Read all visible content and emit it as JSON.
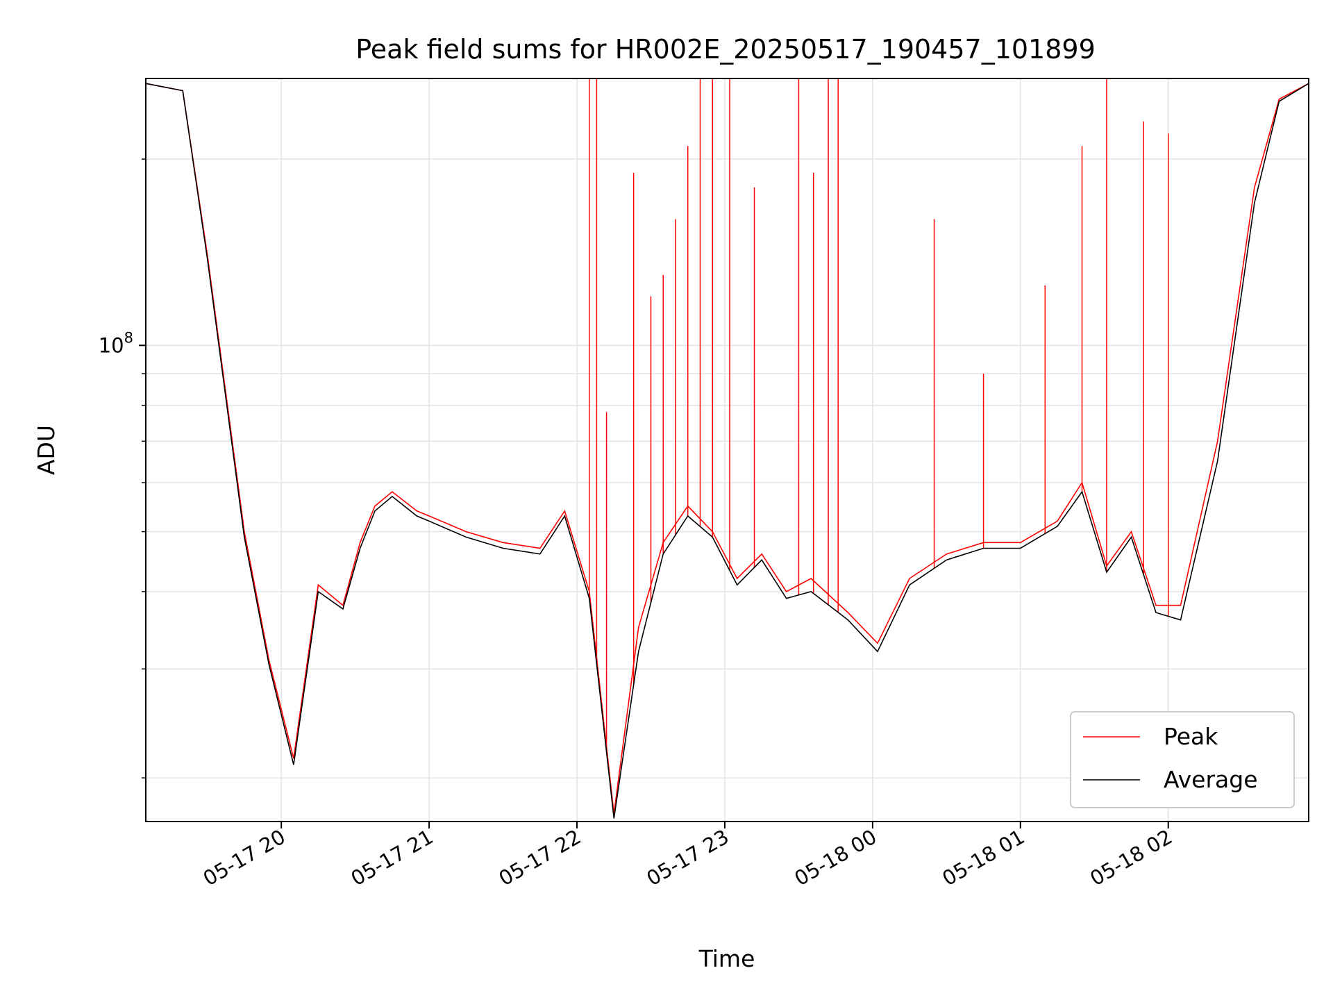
{
  "chart_data": {
    "type": "line",
    "title": "Peak field sums for HR002E_20250517_190457_101899",
    "xlabel": "Time",
    "ylabel": "ADU",
    "yscale": "log",
    "ylim": [
      17000000,
      270000000
    ],
    "xlim": [
      "05-17 19:05",
      "05-18 02:57"
    ],
    "x_ticks": [
      "05-17 20",
      "05-17 21",
      "05-17 22",
      "05-17 23",
      "05-18 00",
      "05-18 01",
      "05-18 02"
    ],
    "y_major_ticks": [
      {
        "value": 100000000,
        "label": "10^8"
      }
    ],
    "grid": true,
    "legend_position": "lower-right",
    "series": [
      {
        "name": "Peak",
        "color": "#ff0000",
        "x": [
          "05-17 19:05",
          "05-17 19:20",
          "05-17 19:30",
          "05-17 19:45",
          "05-17 19:55",
          "05-17 20:05",
          "05-17 20:15",
          "05-17 20:25",
          "05-17 20:32",
          "05-17 20:38",
          "05-17 20:45",
          "05-17 20:55",
          "05-17 21:00",
          "05-17 21:15",
          "05-17 21:30",
          "05-17 21:45",
          "05-17 21:55",
          "05-17 22:05",
          "05-17 22:15",
          "05-17 22:25",
          "05-17 22:35",
          "05-17 22:45",
          "05-17 22:55",
          "05-17 23:05",
          "05-17 23:15",
          "05-17 23:25",
          "05-17 23:35",
          "05-17 23:50",
          "05-18 00:02",
          "05-18 00:15",
          "05-18 00:30",
          "05-18 00:45",
          "05-18 01:00",
          "05-18 01:15",
          "05-18 01:25",
          "05-18 01:35",
          "05-18 01:45",
          "05-18 01:55",
          "05-18 02:05",
          "05-18 02:20",
          "05-18 02:35",
          "05-18 02:45",
          "05-18 02:57"
        ],
        "y": [
          265000000,
          258000000,
          140000000,
          50000000,
          31000000,
          21500000,
          41000000,
          38000000,
          48000000,
          55000000,
          58000000,
          54000000,
          53000000,
          50000000,
          48000000,
          47000000,
          54000000,
          40000000,
          17500000,
          35000000,
          48000000,
          55000000,
          50000000,
          42000000,
          46000000,
          40000000,
          42000000,
          37000000,
          33000000,
          42000000,
          46000000,
          48000000,
          48000000,
          52000000,
          60000000,
          44000000,
          50000000,
          38000000,
          38000000,
          70000000,
          180000000,
          250000000,
          265000000
        ]
      },
      {
        "name": "Average",
        "color": "#000000",
        "x": [
          "05-17 19:05",
          "05-17 19:20",
          "05-17 19:30",
          "05-17 19:45",
          "05-17 19:55",
          "05-17 20:05",
          "05-17 20:15",
          "05-17 20:25",
          "05-17 20:32",
          "05-17 20:38",
          "05-17 20:45",
          "05-17 20:55",
          "05-17 21:00",
          "05-17 21:15",
          "05-17 21:30",
          "05-17 21:45",
          "05-17 21:55",
          "05-17 22:05",
          "05-17 22:15",
          "05-17 22:25",
          "05-17 22:35",
          "05-17 22:45",
          "05-17 22:55",
          "05-17 23:05",
          "05-17 23:15",
          "05-17 23:25",
          "05-17 23:35",
          "05-17 23:50",
          "05-18 00:02",
          "05-18 00:15",
          "05-18 00:30",
          "05-18 00:45",
          "05-18 01:00",
          "05-18 01:15",
          "05-18 01:25",
          "05-18 01:35",
          "05-18 01:45",
          "05-18 01:55",
          "05-18 02:05",
          "05-18 02:20",
          "05-18 02:35",
          "05-18 02:45",
          "05-18 02:57"
        ],
        "y": [
          265000000,
          258000000,
          138000000,
          49000000,
          30500000,
          21000000,
          40000000,
          37500000,
          47000000,
          54000000,
          57000000,
          53000000,
          52000000,
          49000000,
          47000000,
          46000000,
          53000000,
          39000000,
          17200000,
          32000000,
          46000000,
          53000000,
          49000000,
          41000000,
          45000000,
          39000000,
          40000000,
          36000000,
          32000000,
          41000000,
          45000000,
          47000000,
          47000000,
          51000000,
          58000000,
          43000000,
          49000000,
          37000000,
          36000000,
          65000000,
          170000000,
          248000000,
          265000000
        ]
      }
    ],
    "peak_spikes": [
      {
        "x": "05-17 22:05",
        "y": 270000000
      },
      {
        "x": "05-17 22:08",
        "y": 270000000
      },
      {
        "x": "05-17 22:12",
        "y": 78000000
      },
      {
        "x": "05-17 22:23",
        "y": 190000000
      },
      {
        "x": "05-17 22:30",
        "y": 120000000
      },
      {
        "x": "05-17 22:35",
        "y": 130000000
      },
      {
        "x": "05-17 22:40",
        "y": 160000000
      },
      {
        "x": "05-17 22:45",
        "y": 210000000
      },
      {
        "x": "05-17 22:50",
        "y": 270000000
      },
      {
        "x": "05-17 22:55",
        "y": 270000000
      },
      {
        "x": "05-17 23:02",
        "y": 270000000
      },
      {
        "x": "05-17 23:12",
        "y": 180000000
      },
      {
        "x": "05-17 23:30",
        "y": 270000000
      },
      {
        "x": "05-17 23:36",
        "y": 190000000
      },
      {
        "x": "05-17 23:42",
        "y": 270000000
      },
      {
        "x": "05-17 23:46",
        "y": 270000000
      },
      {
        "x": "05-18 00:25",
        "y": 160000000
      },
      {
        "x": "05-18 00:45",
        "y": 90000000
      },
      {
        "x": "05-18 01:10",
        "y": 125000000
      },
      {
        "x": "05-18 01:25",
        "y": 210000000
      },
      {
        "x": "05-18 01:35",
        "y": 270000000
      },
      {
        "x": "05-18 01:50",
        "y": 230000000
      },
      {
        "x": "05-18 02:00",
        "y": 220000000
      }
    ]
  }
}
